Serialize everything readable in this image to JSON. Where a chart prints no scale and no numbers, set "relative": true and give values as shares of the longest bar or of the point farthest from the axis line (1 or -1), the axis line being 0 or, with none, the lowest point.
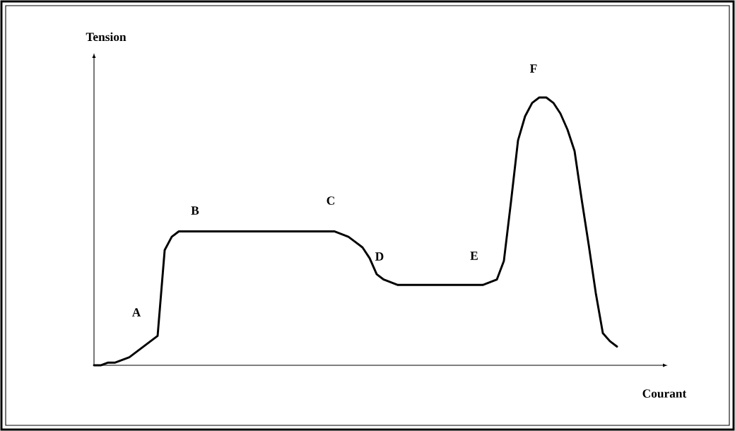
{
  "chart_data": {
    "type": "line",
    "relative": true,
    "xlabel": "Courant",
    "ylabel": "Tension",
    "color": "#000000",
    "categories": [
      null,
      null,
      null,
      null,
      null,
      null,
      null,
      null,
      null,
      null,
      null,
      null,
      null,
      null,
      null,
      null,
      null,
      null,
      null,
      null,
      null,
      null,
      null,
      null,
      null,
      null,
      null,
      null,
      null,
      null,
      null,
      null,
      null,
      null,
      null,
      null,
      null,
      null,
      null,
      null,
      null,
      null,
      null,
      null,
      null,
      null,
      null,
      null,
      null,
      null,
      null,
      null,
      null,
      null,
      null,
      null,
      null,
      null,
      null,
      null,
      null,
      null,
      null,
      null,
      null,
      null,
      null,
      null,
      null,
      null,
      null,
      null,
      null,
      null,
      null
    ],
    "values": [
      0,
      0,
      0.01,
      0.01,
      0.02,
      0.03,
      0.05,
      0.07,
      0.09,
      0.11,
      0.43,
      0.48,
      0.5,
      0.5,
      0.5,
      0.5,
      0.5,
      0.5,
      0.5,
      0.5,
      0.5,
      0.5,
      0.5,
      0.5,
      0.5,
      0.5,
      0.5,
      0.5,
      0.5,
      0.5,
      0.5,
      0.5,
      0.5,
      0.5,
      0.5,
      0.49,
      0.48,
      0.46,
      0.44,
      0.4,
      0.34,
      0.32,
      0.31,
      0.3,
      0.3,
      0.3,
      0.3,
      0.3,
      0.3,
      0.3,
      0.3,
      0.3,
      0.3,
      0.3,
      0.3,
      0.3,
      0.31,
      0.32,
      0.39,
      0.61,
      0.84,
      0.93,
      0.98,
      1,
      1,
      0.98,
      0.94,
      0.88,
      0.8,
      0.62,
      0.45,
      0.27,
      0.12,
      0.09,
      0.07
    ],
    "annotations": [
      "A",
      "B",
      "C",
      "D",
      "E",
      "F"
    ]
  }
}
